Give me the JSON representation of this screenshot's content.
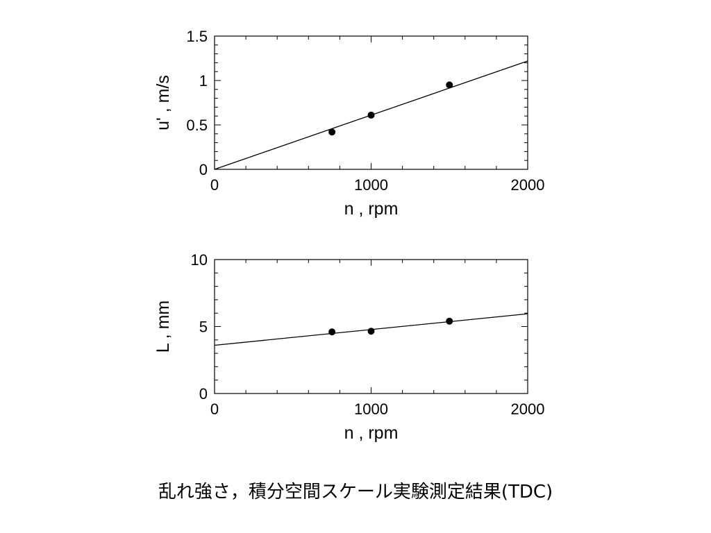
{
  "caption": "乱れ強さ，積分空間スケール実験測定結果(TDC)",
  "chart_data": [
    {
      "type": "scatter",
      "xlabel": "n , rpm",
      "ylabel": "u' , m/s",
      "xlim": [
        0,
        2000
      ],
      "ylim": [
        0,
        1.5
      ],
      "xticks": [
        "0",
        "1000",
        "2000"
      ],
      "yticks": [
        "0",
        "0.5",
        "1",
        "1.5"
      ],
      "points": [
        {
          "x": 750,
          "y": 0.42
        },
        {
          "x": 1000,
          "y": 0.61
        },
        {
          "x": 1500,
          "y": 0.95
        }
      ],
      "fit_line": {
        "x": [
          0,
          2000
        ],
        "y": [
          0,
          1.22
        ]
      },
      "grid": false
    },
    {
      "type": "scatter",
      "xlabel": "n , rpm",
      "ylabel": "L , mm",
      "xlim": [
        0,
        2000
      ],
      "ylim": [
        0,
        10
      ],
      "xticks": [
        "0",
        "1000",
        "2000"
      ],
      "yticks": [
        "0",
        "5",
        "10"
      ],
      "points": [
        {
          "x": 750,
          "y": 4.6
        },
        {
          "x": 1000,
          "y": 4.65
        },
        {
          "x": 1500,
          "y": 5.4
        }
      ],
      "fit_line": {
        "x": [
          0,
          2000
        ],
        "y": [
          3.6,
          5.95
        ]
      },
      "grid": false
    }
  ]
}
